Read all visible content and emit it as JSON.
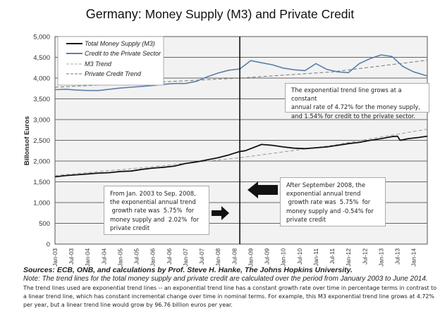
{
  "title": {
    "prefix": "Germany:",
    "main": "Money Supply (M3) and Private Credit"
  },
  "chart_data": {
    "type": "line",
    "title": "Germany: Money Supply (M3) and Private Credit",
    "xlabel": "",
    "ylabel": "Billions of Euros",
    "ylabel_display": "Billonsof Euros",
    "ylim": [
      0,
      5000
    ],
    "yticks": [
      0,
      500,
      1000,
      1500,
      2000,
      2500,
      3000,
      3500,
      4000,
      4500,
      5000
    ],
    "ytick_labels": [
      "0",
      "500",
      "1,000",
      "1,500",
      "2,000",
      "2,500",
      "3,000",
      "3,500",
      "4,000",
      "4,500",
      "5,000"
    ],
    "xrange_months": [
      0,
      137
    ],
    "x_start": "Jan-03",
    "x_end": "Jun-14",
    "xtick_labels": [
      "Jan-03",
      "Jul-03",
      "Jan-04",
      "Jul-04",
      "Jan-05",
      "Jul-05",
      "Jan-06",
      "Jul-06",
      "Jan-07",
      "Jul-07",
      "Jan-08",
      "Jul-08",
      "Jan-09",
      "Jul-09",
      "Jan-10",
      "Jul-10",
      "Jan-11",
      "Jul-11",
      "Jan-12",
      "Jul-12",
      "Jan-13",
      "Jul-13",
      "Jan-14"
    ],
    "grid": true,
    "legend_position": "top-left",
    "vertical_marker": {
      "month": 68,
      "label": "Sep-08"
    },
    "series": [
      {
        "name": "Total Money Supply (M3)",
        "style": "solid",
        "color": "#111111",
        "x_months": [
          0,
          4,
          8,
          12,
          16,
          20,
          24,
          28,
          32,
          36,
          40,
          44,
          48,
          52,
          56,
          60,
          64,
          68,
          70,
          72,
          76,
          80,
          84,
          88,
          92,
          96,
          100,
          104,
          108,
          112,
          116,
          120,
          124,
          126,
          127,
          130,
          134,
          137
        ],
        "values": [
          1620,
          1650,
          1670,
          1690,
          1710,
          1720,
          1750,
          1760,
          1800,
          1830,
          1850,
          1880,
          1940,
          1980,
          2030,
          2080,
          2150,
          2230,
          2250,
          2300,
          2400,
          2380,
          2340,
          2310,
          2300,
          2320,
          2340,
          2380,
          2420,
          2450,
          2500,
          2540,
          2590,
          2600,
          2500,
          2540,
          2570,
          2600
        ]
      },
      {
        "name": "Credit to the Private Sector",
        "style": "solid",
        "color": "#5b7fa6",
        "x_months": [
          0,
          4,
          8,
          12,
          16,
          20,
          24,
          28,
          32,
          36,
          40,
          44,
          48,
          52,
          56,
          60,
          64,
          68,
          70,
          72,
          76,
          80,
          84,
          88,
          92,
          96,
          100,
          104,
          108,
          112,
          116,
          120,
          124,
          128,
          132,
          137
        ],
        "values": [
          3720,
          3730,
          3710,
          3700,
          3700,
          3730,
          3760,
          3780,
          3800,
          3820,
          3850,
          3870,
          3870,
          3920,
          4030,
          4120,
          4190,
          4220,
          4320,
          4420,
          4370,
          4320,
          4240,
          4200,
          4180,
          4350,
          4210,
          4150,
          4130,
          4350,
          4470,
          4560,
          4520,
          4280,
          4150,
          4050
        ]
      },
      {
        "name": "M3 Trend",
        "style": "dashed",
        "color": "#999999",
        "x_months": [
          0,
          34,
          68,
          102,
          137
        ],
        "values": [
          1650,
          1850,
          2080,
          2380,
          2770
        ]
      },
      {
        "name": "Private Credit Trend",
        "style": "dashed",
        "color": "#777777",
        "x_months": [
          0,
          34,
          68,
          102,
          137
        ],
        "values": [
          3780,
          3890,
          4000,
          4150,
          4430
        ]
      }
    ],
    "annotations": [
      "The exponential trend line grows at a constant annual rate of 4.72% for the money supply, and 1.54% for credit to the private sector.",
      "From Jan. 2003 to Sep. 2008, the exponential annual trend growth rate was 5.75% for money supply and 2.02% for private credit",
      "After September 2008, the exponential annual trend growth rate was 5.75% for money supply and -0.54% for private credit"
    ]
  },
  "legend": {
    "items": [
      "Total Money Supply (M3)",
      "Credit to the Private Sector",
      "M3 Trend",
      "Private Credit Trend"
    ]
  },
  "annotations": {
    "overall": [
      "The exponential trend line grows at a constant",
      "annual rate of 4.72% for the money supply,",
      "and 1.54% for credit to the private sector."
    ],
    "before": [
      "From Jan. 2003 to Sep. 2008,",
      "the exponential annual trend",
      " growth rate was  5.75%  for",
      "money supply and  2.02%  for",
      "private credit"
    ],
    "after": [
      "After September 2008, the",
      "exponential annual trend",
      " growth rate was  5.75%  for",
      "money supply and -0.54% for",
      "private credit"
    ]
  },
  "footer": {
    "sources": "Sources: ECB, ONB, and calculations by Prof. Steve H. Hanke, The Johns Hopkins University.",
    "note": "Note: The trend lines for the total money supply and private credit are calculated over the period from January 2003 to  June 2014.",
    "explanation": "The trend lines used are exponential trend lines -- an exponential trend line has a constant growth rate over time in percentage terms in contrast to a linear trend line, which has constant incremental change over time in nominal terms. For example, this M3 exponential trend line grows at 4.72% per year, but a linear trend line would grow by  96.76  billion euros per year."
  }
}
